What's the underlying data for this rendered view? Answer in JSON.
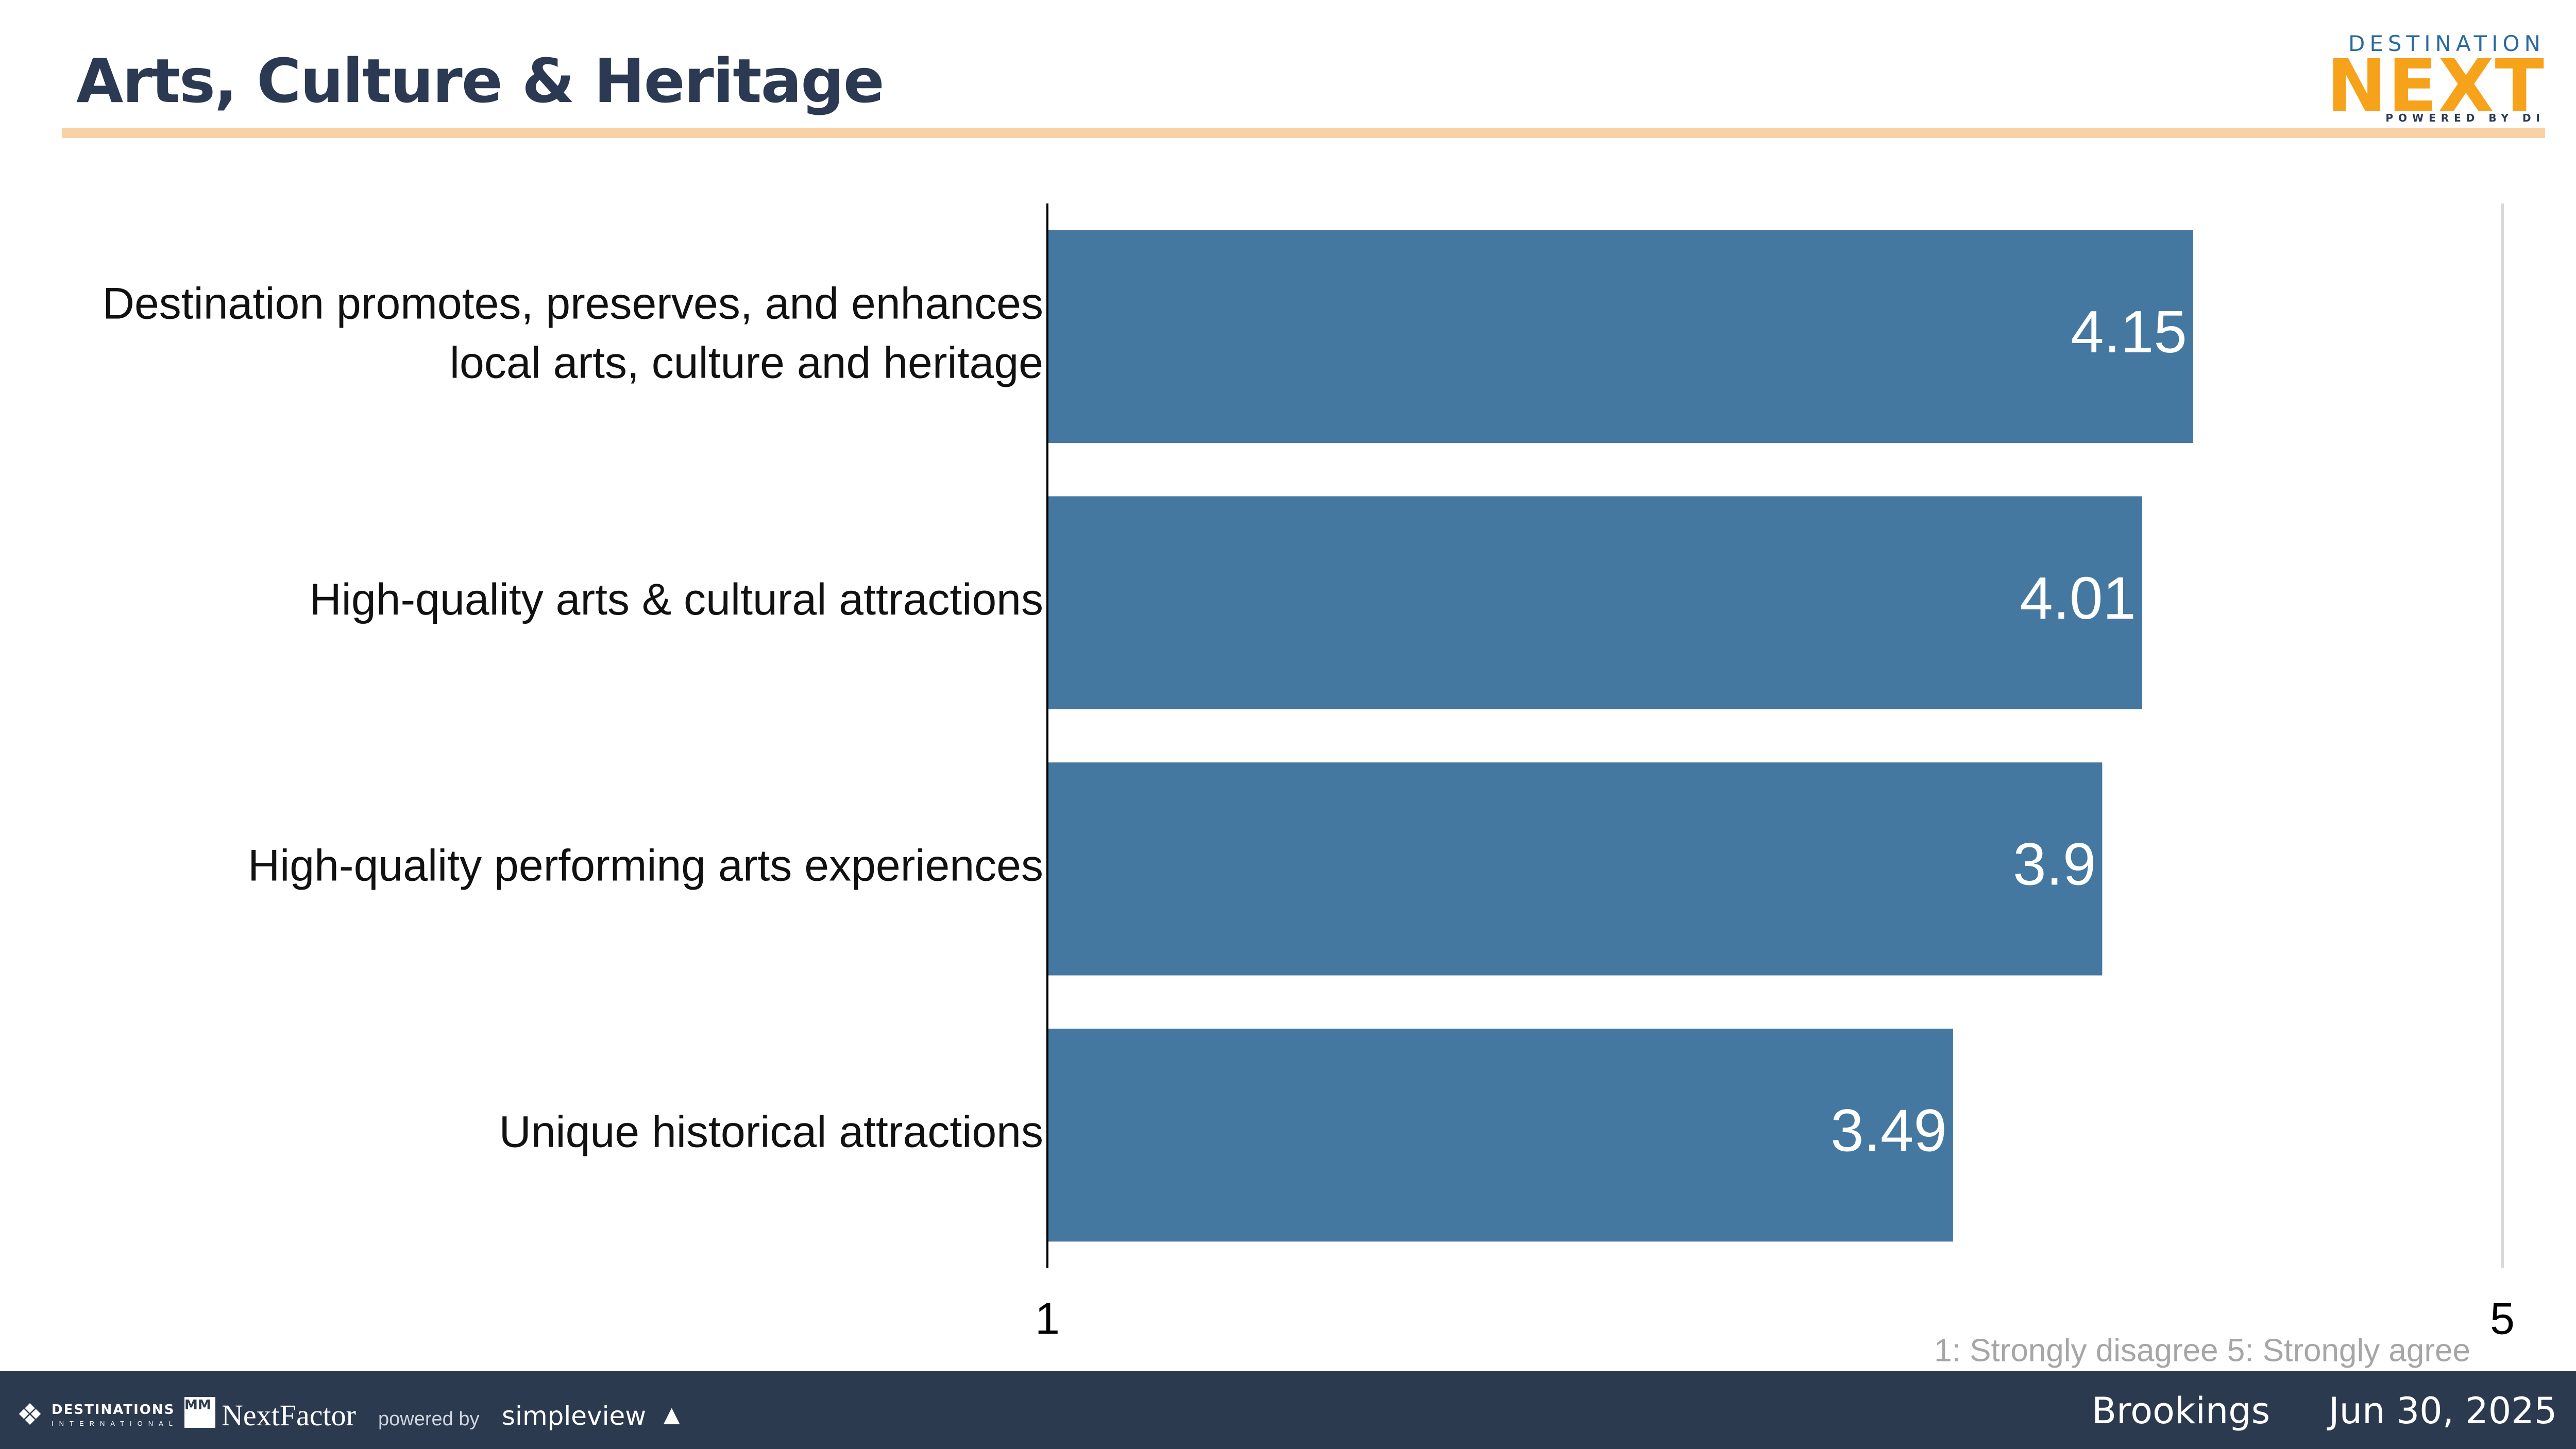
{
  "header": {
    "title": "Arts, Culture & Heritage",
    "logo": {
      "top_text": "DESTINATION",
      "main_text": "NEXT",
      "sub_text": "POWERED BY DI"
    }
  },
  "chart_data": {
    "type": "bar",
    "orientation": "horizontal",
    "title": "Arts, Culture & Heritage",
    "categories": [
      [
        "Destination promotes, preserves, and enhances",
        "local arts, culture and heritage"
      ],
      [
        "High-quality arts & cultural attractions"
      ],
      [
        "High-quality performing arts experiences"
      ],
      [
        "Unique historical attractions"
      ]
    ],
    "values": [
      4.15,
      4.01,
      3.9,
      3.49
    ],
    "value_labels": [
      "4.15",
      "4.01",
      "3.9",
      "3.49"
    ],
    "xlim": [
      1,
      5
    ],
    "xticks": [
      "1",
      "5"
    ],
    "scale_note": "1: Strongly disagree  5: Strongly agree",
    "grid": false,
    "legend": "none",
    "bar_color": "#4478a0"
  },
  "footer": {
    "logos": {
      "di_mark": "❖",
      "di_text": "DESTINATIONS",
      "di_sub": "INTERNATIONAL",
      "mmgy": "MM GY",
      "nextfactor": "NextFactor",
      "powered_by": "powered by",
      "simpleview": "simpleview",
      "simpleview_icon": "▲"
    },
    "location": "Brookings",
    "date": "Jun 30, 2025"
  },
  "colors": {
    "title": "#2b3a52",
    "rule": "#f8d2a4",
    "footer_bg": "#2b3a4f",
    "bar": "#4478a0",
    "axis_right": "#d9d9d9",
    "note": "#a6a6a6",
    "logo_orange": "#f7a21b",
    "logo_blue": "#2a6aa0"
  }
}
